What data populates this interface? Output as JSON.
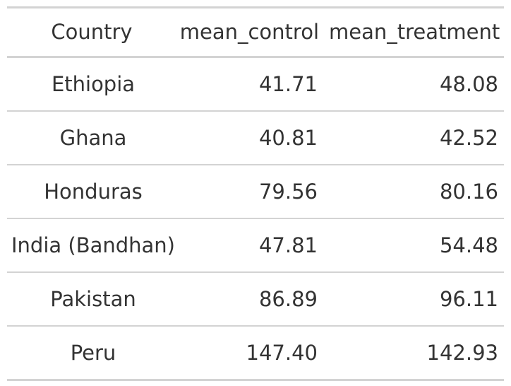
{
  "table": {
    "headers": [
      "Country",
      "mean_control",
      "mean_treatment"
    ],
    "rows": [
      [
        "Ethiopia",
        "41.71",
        "48.08"
      ],
      [
        "Ghana",
        "40.81",
        "42.52"
      ],
      [
        "Honduras",
        "79.56",
        "80.16"
      ],
      [
        "India (Bandhan)",
        "47.81",
        "54.48"
      ],
      [
        "Pakistan",
        "86.89",
        "96.11"
      ],
      [
        "Peru",
        "147.40",
        "142.93"
      ]
    ]
  },
  "chart_data": {
    "type": "table",
    "columns": [
      "Country",
      "mean_control",
      "mean_treatment"
    ],
    "rows": [
      {
        "Country": "Ethiopia",
        "mean_control": 41.71,
        "mean_treatment": 48.08
      },
      {
        "Country": "Ghana",
        "mean_control": 40.81,
        "mean_treatment": 42.52
      },
      {
        "Country": "Honduras",
        "mean_control": 79.56,
        "mean_treatment": 80.16
      },
      {
        "Country": "India (Bandhan)",
        "mean_control": 47.81,
        "mean_treatment": 54.48
      },
      {
        "Country": "Pakistan",
        "mean_control": 86.89,
        "mean_treatment": 96.11
      },
      {
        "Country": "Peru",
        "mean_control": 147.4,
        "mean_treatment": 142.93
      }
    ]
  }
}
